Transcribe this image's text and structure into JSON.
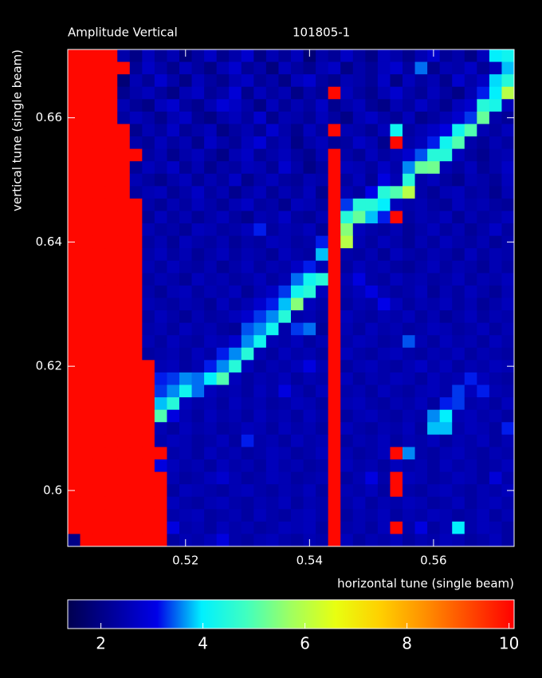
{
  "chart_data": {
    "type": "heatmap",
    "title": "Amplitude Vertical",
    "subtitle": "101805-1",
    "xlabel": "horizontal tune (single beam)",
    "ylabel": "vertical tune (single beam)",
    "xlim": [
      0.501,
      0.573
    ],
    "ylim": [
      0.591,
      0.671
    ],
    "xticks": [
      0.52,
      0.54,
      0.56
    ],
    "yticks": [
      0.6,
      0.62,
      0.64,
      0.66
    ],
    "zlim": [
      1.35,
      10.1
    ],
    "zticks": [
      2,
      4,
      6,
      8,
      10
    ],
    "colorscale": [
      "#000050",
      "#00009a",
      "#0000e8",
      "#00f0ff",
      "#40ffc0",
      "#a0ff60",
      "#e8ff10",
      "#ffd000",
      "#ff9000",
      "#ff4800",
      "#ff0000"
    ],
    "z": [
      [
        10,
        10,
        10,
        10,
        2.4,
        2.0,
        2.6,
        2.2,
        2.5,
        1.9,
        2.3,
        2.7,
        2.1,
        2.4,
        2.8,
        2.0,
        2.5,
        2.2,
        2.6,
        1.8,
        2.4,
        2.2,
        2.7,
        2.3,
        2.0,
        2.6,
        2.4,
        2.1,
        2.5,
        2.8,
        2.2,
        2.4,
        2.0,
        2.6,
        4.0,
        4.2
      ],
      [
        10,
        10,
        10,
        10,
        10,
        2.2,
        2.7,
        2.4,
        2.1,
        2.6,
        2.3,
        2.0,
        2.5,
        2.8,
        2.2,
        2.4,
        1.9,
        2.6,
        2.3,
        2.1,
        2.5,
        2.7,
        2.0,
        2.4,
        2.2,
        2.6,
        2.8,
        2.3,
        3.5,
        2.1,
        2.5,
        2.4,
        2.7,
        2.2,
        2.6,
        3.8
      ],
      [
        10,
        10,
        10,
        10,
        1.8,
        2.5,
        2.2,
        2.8,
        2.4,
        2.0,
        2.6,
        2.3,
        2.1,
        2.5,
        2.7,
        2.2,
        2.4,
        2.0,
        2.6,
        2.8,
        2.3,
        2.1,
        2.5,
        2.4,
        2.2,
        2.7,
        2.0,
        2.6,
        2.3,
        2.5,
        2.1,
        2.8,
        2.4,
        2.7,
        3.9,
        4.5
      ],
      [
        10,
        10,
        10,
        10,
        2.1,
        2.4,
        2.6,
        2.3,
        2.0,
        2.5,
        2.7,
        2.2,
        2.4,
        2.9,
        2.1,
        2.6,
        2.3,
        2.5,
        2.0,
        2.4,
        2.2,
        10,
        2.6,
        2.3,
        2.1,
        2.5,
        2.8,
        2.4,
        2.2,
        2.6,
        2.3,
        2.0,
        2.5,
        3.2,
        4.0,
        6.0
      ],
      [
        10,
        10,
        10,
        10,
        2.5,
        2.2,
        2.0,
        2.6,
        2.8,
        2.3,
        2.1,
        2.5,
        2.9,
        2.7,
        2.4,
        2.0,
        2.6,
        2.2,
        2.5,
        2.3,
        2.7,
        2.1,
        2.4,
        2.6,
        2.2,
        2.0,
        2.5,
        2.3,
        2.7,
        2.4,
        2.1,
        2.6,
        2.8,
        4.5,
        4.3,
        2.6
      ],
      [
        10,
        10,
        10,
        10,
        2.3,
        2.6,
        2.4,
        2.1,
        2.5,
        2.7,
        2.2,
        2.0,
        2.4,
        2.6,
        2.3,
        2.8,
        2.1,
        2.5,
        2.4,
        2.2,
        2.6,
        2.3,
        2.0,
        2.5,
        2.7,
        2.4,
        2.2,
        2.6,
        2.1,
        2.3,
        2.5,
        2.8,
        3.3,
        5.2,
        2.4,
        2.2
      ],
      [
        10,
        10,
        10,
        10,
        10,
        2.1,
        2.5,
        2.3,
        2.7,
        2.2,
        2.4,
        2.6,
        2.0,
        2.3,
        2.5,
        2.2,
        2.8,
        2.4,
        2.1,
        2.6,
        2.3,
        10,
        2.5,
        2.4,
        2.2,
        2.6,
        4.2,
        2.3,
        2.5,
        2.7,
        3.0,
        4.2,
        5.0,
        2.5,
        2.3,
        2.6
      ],
      [
        10,
        10,
        10,
        10,
        10,
        2.4,
        2.2,
        2.6,
        2.3,
        2.5,
        2.1,
        2.7,
        2.4,
        2.2,
        2.6,
        2.9,
        2.3,
        2.5,
        2.0,
        2.4,
        2.6,
        2.2,
        2.3,
        2.7,
        2.5,
        2.1,
        10,
        2.4,
        2.6,
        3.2,
        4.2,
        5.0,
        2.4,
        2.2,
        2.5,
        2.3
      ],
      [
        10,
        10,
        10,
        10,
        10,
        10,
        2.3,
        2.5,
        2.1,
        2.4,
        2.6,
        2.3,
        2.0,
        2.5,
        2.7,
        2.2,
        2.4,
        2.6,
        2.3,
        2.1,
        2.5,
        10,
        2.4,
        2.2,
        2.6,
        2.3,
        2.5,
        2.8,
        3.4,
        4.5,
        4.5,
        2.6,
        2.3,
        2.1,
        2.4,
        2.5
      ],
      [
        10,
        10,
        10,
        10,
        10,
        2.2,
        2.6,
        2.4,
        2.7,
        2.2,
        2.5,
        2.1,
        2.4,
        2.3,
        2.6,
        2.5,
        2.2,
        2.8,
        2.4,
        2.0,
        2.3,
        10,
        2.6,
        2.5,
        2.3,
        2.7,
        2.4,
        3.6,
        5.2,
        5.3,
        2.5,
        2.3,
        2.6,
        2.2,
        2.4,
        2.7
      ],
      [
        10,
        10,
        10,
        10,
        10,
        2.5,
        2.3,
        2.1,
        2.4,
        2.6,
        2.2,
        2.5,
        2.3,
        2.7,
        2.1,
        2.4,
        2.6,
        2.3,
        2.2,
        2.5,
        2.4,
        10,
        2.3,
        2.6,
        2.2,
        3.0,
        2.5,
        4.5,
        2.4,
        2.6,
        2.3,
        2.1,
        2.5,
        2.4,
        2.2,
        2.6
      ],
      [
        10,
        10,
        10,
        10,
        10,
        2.3,
        2.5,
        2.6,
        2.2,
        2.4,
        2.7,
        2.3,
        2.5,
        2.1,
        2.4,
        2.6,
        2.2,
        2.5,
        2.3,
        2.6,
        2.1,
        10,
        2.5,
        2.3,
        3.1,
        4.5,
        5.0,
        6.0,
        2.4,
        2.2,
        2.5,
        2.6,
        2.3,
        2.4,
        2.1,
        2.5
      ],
      [
        10,
        10,
        10,
        10,
        10,
        10,
        2.4,
        2.2,
        2.5,
        2.3,
        2.6,
        2.4,
        2.2,
        2.5,
        2.7,
        2.3,
        2.4,
        2.1,
        2.6,
        2.5,
        2.3,
        10,
        3.3,
        4.5,
        4.5,
        4.0,
        2.6,
        2.4,
        2.5,
        2.3,
        2.2,
        2.6,
        2.4,
        2.5,
        2.3,
        2.2
      ],
      [
        10,
        10,
        10,
        10,
        10,
        10,
        2.2,
        2.6,
        2.3,
        2.5,
        2.2,
        2.4,
        2.6,
        2.3,
        2.1,
        2.5,
        2.4,
        2.7,
        2.3,
        2.2,
        2.5,
        10,
        4.5,
        5.2,
        3.8,
        3.2,
        10,
        2.3,
        2.5,
        2.4,
        2.6,
        2.2,
        2.5,
        2.3,
        2.4,
        2.6
      ],
      [
        10,
        10,
        10,
        10,
        10,
        10,
        2.5,
        2.3,
        2.4,
        2.2,
        2.6,
        2.5,
        2.3,
        2.4,
        2.6,
        3.2,
        2.3,
        2.5,
        2.4,
        2.6,
        2.2,
        10,
        5.5,
        2.6,
        2.4,
        2.3,
        2.5,
        2.2,
        2.4,
        2.6,
        2.3,
        2.5,
        2.2,
        2.4,
        2.7,
        2.3
      ],
      [
        10,
        10,
        10,
        10,
        10,
        10,
        2.3,
        2.5,
        2.2,
        2.6,
        2.4,
        2.3,
        2.5,
        2.2,
        2.4,
        2.3,
        2.6,
        2.5,
        2.3,
        2.4,
        3.2,
        10,
        6.0,
        2.5,
        2.3,
        2.6,
        2.4,
        2.2,
        2.5,
        2.3,
        2.6,
        2.4,
        2.3,
        2.5,
        2.2,
        2.4
      ],
      [
        10,
        10,
        10,
        10,
        10,
        10,
        2.4,
        2.6,
        2.3,
        2.5,
        2.2,
        2.4,
        2.6,
        2.3,
        2.5,
        2.4,
        2.2,
        2.6,
        2.4,
        2.3,
        3.8,
        10,
        2.4,
        2.3,
        2.5,
        2.2,
        2.6,
        2.4,
        2.3,
        2.5,
        2.4,
        2.2,
        2.6,
        2.3,
        2.5,
        2.4
      ],
      [
        10,
        10,
        10,
        10,
        10,
        10,
        2.5,
        2.3,
        2.6,
        2.4,
        2.3,
        2.5,
        2.2,
        2.4,
        2.6,
        2.3,
        2.5,
        2.4,
        2.7,
        3.2,
        2.5,
        10,
        2.3,
        2.6,
        2.4,
        2.5,
        2.3,
        2.2,
        2.4,
        2.6,
        2.3,
        2.5,
        2.4,
        2.2,
        2.5,
        2.3
      ],
      [
        10,
        10,
        10,
        10,
        10,
        10,
        2.3,
        2.5,
        2.4,
        2.2,
        2.6,
        2.4,
        2.5,
        2.3,
        2.4,
        2.6,
        2.3,
        2.5,
        3.5,
        4.2,
        4.5,
        10,
        2.5,
        3.0,
        2.4,
        2.3,
        2.6,
        2.4,
        2.5,
        2.3,
        2.4,
        2.6,
        2.3,
        2.5,
        2.4,
        2.6
      ],
      [
        10,
        10,
        10,
        10,
        10,
        10,
        2.4,
        2.2,
        2.5,
        2.6,
        2.3,
        2.5,
        2.4,
        2.6,
        2.2,
        2.5,
        2.7,
        3.3,
        4.2,
        4.5,
        2.6,
        10,
        2.4,
        2.6,
        3.0,
        2.5,
        2.3,
        2.4,
        2.6,
        2.2,
        2.5,
        2.3,
        2.6,
        2.4,
        2.2,
        2.5
      ],
      [
        10,
        10,
        10,
        10,
        10,
        10,
        2.5,
        2.4,
        2.3,
        2.5,
        2.4,
        2.2,
        2.6,
        2.3,
        2.5,
        2.8,
        3.2,
        3.8,
        5.5,
        2.6,
        2.4,
        10,
        2.3,
        2.5,
        2.4,
        3.1,
        2.6,
        2.3,
        2.5,
        2.4,
        2.6,
        2.3,
        2.5,
        2.2,
        2.4,
        2.6
      ],
      [
        10,
        10,
        10,
        10,
        10,
        10,
        2.3,
        2.6,
        2.4,
        2.2,
        2.5,
        2.3,
        2.4,
        2.6,
        2.8,
        3.3,
        3.6,
        4.5,
        2.4,
        2.5,
        2.3,
        10,
        2.6,
        2.4,
        2.3,
        2.5,
        2.4,
        2.6,
        2.3,
        2.5,
        2.2,
        2.4,
        2.6,
        2.3,
        2.5,
        2.4
      ],
      [
        10,
        10,
        10,
        10,
        10,
        10,
        2.4,
        2.5,
        2.3,
        2.6,
        2.4,
        2.5,
        2.3,
        2.2,
        3.4,
        3.6,
        4.2,
        2.4,
        3.3,
        3.5,
        2.2,
        10,
        2.5,
        2.3,
        2.6,
        2.4,
        2.5,
        2.3,
        2.4,
        2.6,
        2.5,
        2.3,
        2.4,
        2.6,
        2.3,
        2.5
      ],
      [
        10,
        10,
        10,
        10,
        10,
        10,
        2.5,
        2.3,
        2.6,
        2.4,
        2.3,
        2.6,
        2.5,
        2.8,
        3.6,
        4.2,
        2.5,
        2.4,
        2.6,
        2.3,
        2.5,
        10,
        2.4,
        2.6,
        2.5,
        2.3,
        2.4,
        3.4,
        2.5,
        2.3,
        2.6,
        2.4,
        2.5,
        2.3,
        2.6,
        2.4
      ],
      [
        10,
        10,
        10,
        10,
        10,
        10,
        2.3,
        2.4,
        2.5,
        2.3,
        2.6,
        2.4,
        3.2,
        3.6,
        4.5,
        2.5,
        2.3,
        2.6,
        2.4,
        2.5,
        2.3,
        10,
        2.6,
        2.4,
        2.3,
        2.5,
        2.6,
        2.4,
        2.3,
        2.5,
        2.4,
        2.6,
        2.3,
        2.5,
        2.4,
        2.3
      ],
      [
        10,
        10,
        10,
        10,
        10,
        10,
        10,
        2.5,
        2.6,
        2.3,
        2.5,
        3.2,
        3.6,
        4.5,
        2.6,
        2.3,
        2.5,
        2.4,
        2.6,
        3.0,
        2.5,
        10,
        2.3,
        2.5,
        2.6,
        2.4,
        2.3,
        2.5,
        2.7,
        2.4,
        2.6,
        2.3,
        2.5,
        2.4,
        2.6,
        2.5
      ],
      [
        10,
        10,
        10,
        10,
        10,
        10,
        10,
        3.2,
        3.3,
        3.6,
        3.5,
        4.0,
        5.0,
        2.6,
        2.3,
        2.5,
        2.4,
        2.6,
        2.3,
        2.5,
        2.4,
        10,
        2.6,
        2.3,
        2.5,
        2.4,
        2.6,
        2.5,
        2.3,
        2.6,
        2.4,
        2.5,
        3.2,
        2.6,
        2.4,
        2.3
      ],
      [
        10,
        10,
        10,
        10,
        10,
        10,
        10,
        3.3,
        3.6,
        4.2,
        3.5,
        2.6,
        2.4,
        2.5,
        2.3,
        2.6,
        2.4,
        3.0,
        2.5,
        2.3,
        2.6,
        10,
        2.4,
        2.5,
        2.3,
        2.6,
        2.4,
        2.3,
        2.5,
        2.6,
        2.4,
        3.3,
        2.6,
        3.2,
        2.5,
        2.4
      ],
      [
        10,
        10,
        10,
        10,
        10,
        10,
        10,
        3.8,
        4.5,
        2.6,
        2.4,
        2.5,
        2.3,
        2.6,
        2.4,
        2.5,
        2.3,
        2.4,
        2.6,
        2.5,
        2.3,
        10,
        2.5,
        2.6,
        2.4,
        2.3,
        2.5,
        2.4,
        2.6,
        2.3,
        3.2,
        3.3,
        2.4,
        2.5,
        2.3,
        2.6
      ],
      [
        10,
        10,
        10,
        10,
        10,
        10,
        10,
        5.0,
        3.0,
        2.5,
        2.3,
        2.6,
        2.4,
        2.5,
        2.3,
        2.6,
        2.4,
        2.5,
        2.3,
        2.6,
        2.4,
        10,
        2.3,
        2.5,
        2.6,
        2.4,
        2.3,
        2.5,
        2.4,
        3.6,
        4.0,
        2.5,
        2.6,
        2.4,
        2.5,
        2.3
      ],
      [
        10,
        10,
        10,
        10,
        10,
        10,
        10,
        2.5,
        2.3,
        2.6,
        2.4,
        2.5,
        2.3,
        2.4,
        2.6,
        2.5,
        2.3,
        2.6,
        2.4,
        2.5,
        2.3,
        10,
        2.6,
        2.4,
        2.3,
        2.5,
        2.4,
        2.6,
        2.3,
        3.8,
        3.8,
        2.4,
        2.6,
        2.5,
        2.3,
        3.2
      ],
      [
        10,
        10,
        10,
        10,
        10,
        10,
        10,
        2.4,
        2.6,
        2.5,
        2.3,
        2.4,
        2.6,
        2.3,
        3.2,
        2.4,
        2.5,
        2.3,
        2.6,
        2.4,
        2.5,
        10,
        2.3,
        2.5,
        2.4,
        2.6,
        2.3,
        2.5,
        2.4,
        2.6,
        2.3,
        2.5,
        2.4,
        2.6,
        2.3,
        2.5
      ],
      [
        10,
        10,
        10,
        10,
        10,
        10,
        10,
        10,
        2.4,
        2.5,
        2.3,
        2.6,
        2.4,
        2.5,
        2.3,
        2.4,
        2.6,
        2.5,
        2.3,
        2.4,
        2.6,
        10,
        2.5,
        2.3,
        2.4,
        2.6,
        10,
        3.6,
        2.4,
        2.3,
        2.5,
        2.6,
        2.4,
        2.3,
        2.5,
        2.4
      ],
      [
        10,
        10,
        10,
        10,
        10,
        10,
        10,
        3.0,
        2.6,
        2.4,
        2.5,
        2.3,
        2.6,
        2.4,
        2.5,
        2.3,
        2.6,
        2.4,
        2.5,
        2.3,
        2.4,
        10,
        2.6,
        2.4,
        2.5,
        2.3,
        2.6,
        2.4,
        2.5,
        2.3,
        2.6,
        2.4,
        2.5,
        2.3,
        2.4,
        2.6
      ],
      [
        10,
        10,
        10,
        10,
        10,
        10,
        10,
        10,
        2.5,
        2.3,
        2.4,
        2.6,
        2.8,
        2.5,
        2.3,
        2.4,
        2.6,
        2.5,
        2.3,
        2.4,
        2.5,
        10,
        2.3,
        2.5,
        3.0,
        2.4,
        10,
        2.6,
        2.5,
        2.3,
        2.4,
        2.6,
        2.5,
        2.3,
        2.9,
        2.4
      ],
      [
        10,
        10,
        10,
        10,
        10,
        10,
        10,
        10,
        2.3,
        2.6,
        2.5,
        2.4,
        2.3,
        2.5,
        2.6,
        2.4,
        2.3,
        2.5,
        2.4,
        2.6,
        2.3,
        10,
        2.5,
        2.4,
        2.6,
        2.3,
        10,
        2.4,
        2.3,
        2.5,
        2.6,
        2.4,
        2.3,
        2.5,
        2.4,
        2.6
      ],
      [
        10,
        10,
        10,
        10,
        10,
        10,
        10,
        10,
        2.6,
        2.4,
        2.3,
        2.5,
        2.6,
        2.4,
        2.3,
        2.5,
        2.4,
        2.6,
        2.3,
        2.5,
        2.4,
        10,
        2.4,
        2.6,
        2.3,
        2.5,
        2.4,
        2.6,
        2.5,
        2.3,
        2.4,
        2.6,
        2.3,
        2.5,
        2.6,
        2.4
      ],
      [
        10,
        10,
        10,
        10,
        10,
        10,
        10,
        10,
        2.4,
        2.5,
        2.6,
        2.3,
        2.4,
        2.5,
        2.3,
        2.6,
        2.4,
        2.3,
        2.5,
        2.6,
        2.4,
        10,
        2.3,
        2.5,
        2.4,
        2.6,
        2.3,
        2.5,
        2.4,
        2.6,
        2.5,
        2.3,
        2.4,
        2.6,
        2.3,
        2.5
      ],
      [
        10,
        10,
        10,
        10,
        10,
        10,
        10,
        10,
        3.0,
        2.4,
        2.5,
        2.3,
        2.6,
        2.4,
        2.5,
        2.3,
        2.4,
        2.6,
        2.5,
        2.6,
        2.3,
        10,
        2.4,
        2.5,
        2.3,
        2.6,
        10,
        2.4,
        3.0,
        2.3,
        2.5,
        4.0,
        2.4,
        2.6,
        2.5,
        2.3
      ],
      [
        2.0,
        10,
        10,
        10,
        10,
        10,
        10,
        10,
        2.3,
        2.5,
        2.4,
        2.6,
        3.0,
        2.4,
        2.3,
        2.5,
        2.6,
        2.4,
        2.3,
        2.5,
        2.4,
        10,
        2.6,
        2.3,
        2.5,
        2.4,
        2.6,
        2.3,
        2.5,
        2.4,
        2.6,
        2.5,
        2.3,
        2.4,
        2.6,
        2.3
      ]
    ]
  }
}
